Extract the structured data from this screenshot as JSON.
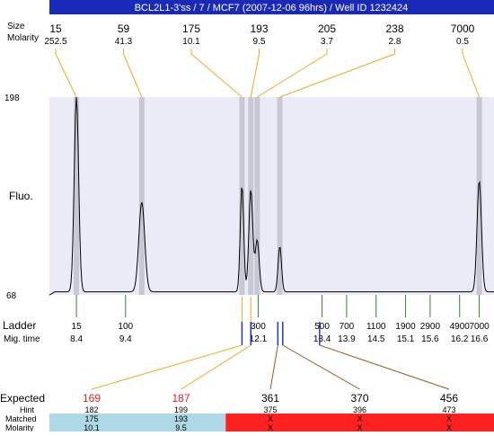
{
  "header": {
    "title": "BCL2L1-3'ss / 7 / MCF7 (2007-12-06 96hrs) / Well ID 1232424",
    "title_bg": "#1a2ab8",
    "row_labels": [
      "Size",
      "Molarity"
    ],
    "peaks": [
      {
        "size": "15",
        "molarity": "252.5",
        "mig": 8.4
      },
      {
        "size": "59",
        "molarity": "41.3",
        "mig": 9.73
      },
      {
        "size": "175",
        "molarity": "10.1",
        "mig": 11.77
      },
      {
        "size": "193",
        "molarity": "9.5",
        "mig": 11.95
      },
      {
        "size": "205",
        "molarity": "3.7",
        "mig": 12.08
      },
      {
        "size": "238",
        "molarity": "2.8",
        "mig": 12.54
      },
      {
        "size": "7000",
        "molarity": "0.5",
        "mig": 16.6
      }
    ]
  },
  "chart_data": {
    "type": "line",
    "title": "BCL2L1-3'ss / 7 / MCF7 (2007-12-06 96hrs) / Well ID 1232424",
    "ylabel": "Fluo.",
    "ylim": [
      68,
      198
    ],
    "y_ticks": [
      "198",
      "68"
    ],
    "xlim": [
      7.85,
      16.9
    ],
    "series": [
      {
        "peaks": [
          {
            "x": 8.4,
            "y": 198,
            "w": 0.045
          },
          {
            "x": 9.73,
            "y": 129,
            "w": 0.06
          },
          {
            "x": 11.77,
            "y": 140,
            "w": 0.035
          },
          {
            "x": 11.95,
            "y": 137,
            "w": 0.04
          },
          {
            "x": 12.08,
            "y": 104,
            "w": 0.04
          },
          {
            "x": 12.54,
            "y": 100,
            "w": 0.035
          },
          {
            "x": 16.6,
            "y": 143,
            "w": 0.045
          }
        ],
        "baseline": 70
      }
    ],
    "plot_bg": "#ebebf7",
    "band_color": "#c8c8d4",
    "trace_color": "#000000",
    "leader_color": "#f5a623"
  },
  "ladder": {
    "label": "Ladder",
    "mig_label": "Mig. time",
    "tick_color": "#2a8a2a",
    "items": [
      {
        "size": "15",
        "mig": "8.4",
        "t": 8.4
      },
      {
        "size": "100",
        "mig": "9.4",
        "t": 9.4
      },
      {
        "size": "300",
        "mig": "12.1",
        "t": 12.1
      },
      {
        "size": "500",
        "mig": "13.4",
        "t": 13.4
      },
      {
        "size": "700",
        "mig": "13.9",
        "t": 13.9
      },
      {
        "size": "1100",
        "mig": "14.5",
        "t": 14.5
      },
      {
        "size": "1900",
        "mig": "15.1",
        "t": 15.1
      },
      {
        "size": "2900",
        "mig": "15.6",
        "t": 15.6
      },
      {
        "size": "4900",
        "mig": "16.2",
        "t": 16.2
      },
      {
        "size": "7000",
        "mig": "16.6",
        "t": 16.6
      }
    ]
  },
  "expected": {
    "labels": [
      "Expected",
      "Hint",
      "Matched",
      "Molarity"
    ],
    "marker_color": "#2233cc",
    "columns": [
      {
        "expected": "169",
        "hint": "182",
        "matched": "175",
        "molarity": "10.1",
        "highlight": true,
        "mig": 11.77,
        "status": "matched"
      },
      {
        "expected": "187",
        "hint": "199",
        "matched": "193",
        "molarity": "9.5",
        "highlight": true,
        "mig": 11.95,
        "status": "matched"
      },
      {
        "expected": "361",
        "hint": "375",
        "matched": "X",
        "molarity": "X",
        "highlight": false,
        "mig": 12.5,
        "status": "missing"
      },
      {
        "expected": "370",
        "hint": "396",
        "matched": "X",
        "molarity": "X",
        "highlight": false,
        "mig": 12.6,
        "status": "missing"
      },
      {
        "expected": "456",
        "hint": "473",
        "matched": "X",
        "molarity": "X",
        "highlight": false,
        "mig": 13.35,
        "status": "missing"
      }
    ],
    "matched_bg": "#add8e6",
    "missing_bg": "#ff2020",
    "highlight_color": "#e02020",
    "matched_leader_color": "#f5a623",
    "missing_leader_color": "#9a5a20"
  }
}
